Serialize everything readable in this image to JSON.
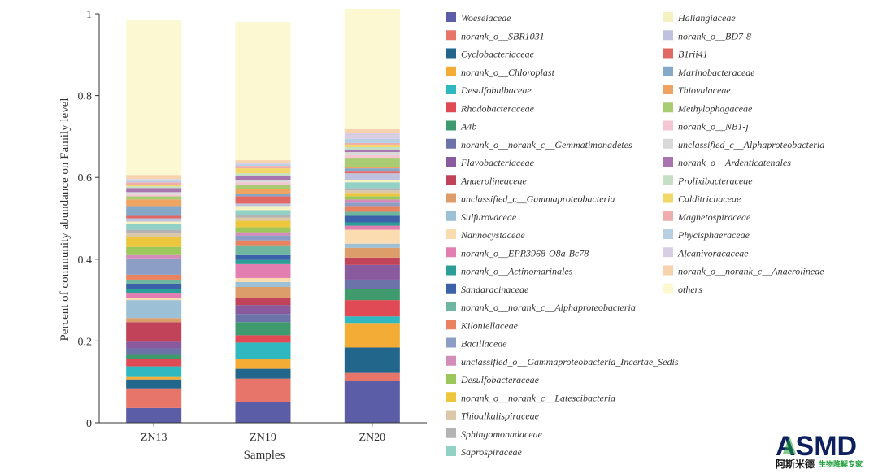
{
  "chart_data": {
    "type": "bar",
    "stacked": true,
    "categories": [
      "ZN13",
      "ZN19",
      "ZN20"
    ],
    "xlabel": "Samples",
    "ylabel": "Percent of community abundance on Family level",
    "ylim": [
      0,
      1
    ],
    "yticks": [
      "0",
      "0.2",
      "0.4",
      "0.6",
      "0.8",
      "1"
    ],
    "legend_position": "right",
    "series": [
      {
        "name": "Woeseiaceae",
        "color": "#5b5ea6",
        "values": [
          0.036,
          0.05,
          0.102
        ]
      },
      {
        "name": "norank_o__SBR1031",
        "color": "#e8756a",
        "values": [
          0.048,
          0.058,
          0.02
        ]
      },
      {
        "name": "Cyclobacteriaceae",
        "color": "#22668c",
        "values": [
          0.022,
          0.024,
          0.062
        ]
      },
      {
        "name": "norank_o__Chloroplast",
        "color": "#f3ad37",
        "values": [
          0.006,
          0.024,
          0.06
        ]
      },
      {
        "name": "Desulfobulbaceae",
        "color": "#2fb8bf",
        "values": [
          0.026,
          0.04,
          0.016
        ]
      },
      {
        "name": "Rhodobacteraceae",
        "color": "#e04a55",
        "values": [
          0.018,
          0.018,
          0.04
        ]
      },
      {
        "name": "A4b",
        "color": "#3f9a6e",
        "values": [
          0.01,
          0.032,
          0.028
        ]
      },
      {
        "name": "norank_o__norank_c__Gemmatimonadetes",
        "color": "#6c73a8",
        "values": [
          0.016,
          0.02,
          0.022
        ]
      },
      {
        "name": "Flavobacteriaceae",
        "color": "#8a5a9e",
        "values": [
          0.016,
          0.022,
          0.036
        ]
      },
      {
        "name": "Anaerolineaceae",
        "color": "#c0435a",
        "values": [
          0.048,
          0.018,
          0.018
        ]
      },
      {
        "name": "unclassified_c__Gammaproteobacteria",
        "color": "#dd9d6a",
        "values": [
          0.01,
          0.026,
          0.024
        ]
      },
      {
        "name": "Sulfurovaceae",
        "color": "#9cc0d6",
        "values": [
          0.044,
          0.012,
          0.01
        ]
      },
      {
        "name": "Nannocystaceae",
        "color": "#fbdcb1",
        "values": [
          0.006,
          0.01,
          0.034
        ]
      },
      {
        "name": "norank_o__EPR3968-O8a-Bc78",
        "color": "#e27fb0",
        "values": [
          0.012,
          0.034,
          0.01
        ]
      },
      {
        "name": "norank_o__Actinomarinales",
        "color": "#2a9e97",
        "values": [
          0.008,
          0.01,
          0.008
        ]
      },
      {
        "name": "Sandaracinaceae",
        "color": "#3b62a8",
        "values": [
          0.014,
          0.012,
          0.016
        ]
      },
      {
        "name": "norank_o__norank_c__Alphaproteobacteria",
        "color": "#6fb6a0",
        "values": [
          0.01,
          0.024,
          0.01
        ]
      },
      {
        "name": "Kiloniellaceae",
        "color": "#e8825f",
        "values": [
          0.012,
          0.012,
          0.014
        ]
      },
      {
        "name": "Bacillaceae",
        "color": "#8d9ec6",
        "values": [
          0.04,
          0.012,
          0.008
        ]
      },
      {
        "name": "unclassified_o__Gammaproteobacteria_Incertae_Sedis",
        "color": "#d48cb8",
        "values": [
          0.008,
          0.008,
          0.008
        ]
      },
      {
        "name": "Desulfobacteraceae",
        "color": "#9cc75a",
        "values": [
          0.02,
          0.012,
          0.008
        ]
      },
      {
        "name": "norank_o__norank_c__Latescibacteria",
        "color": "#ecc63c",
        "values": [
          0.024,
          0.016,
          0.008
        ]
      },
      {
        "name": "Thioalkalispiraceae",
        "color": "#dcc7a8",
        "values": [
          0.01,
          0.008,
          0.006
        ]
      },
      {
        "name": "Sphingomonadaceae",
        "color": "#b3b3b3",
        "values": [
          0.008,
          0.006,
          0.006
        ]
      },
      {
        "name": "Saprospiraceae",
        "color": "#92d2c6",
        "values": [
          0.014,
          0.012,
          0.014
        ]
      },
      {
        "name": "Haliangiaceae",
        "color": "#f6f1c0",
        "values": [
          0.006,
          0.01,
          0.006
        ]
      },
      {
        "name": "norank_o__BD7-8",
        "color": "#bfc2de",
        "values": [
          0.008,
          0.006,
          0.016
        ]
      },
      {
        "name": "B1rii41",
        "color": "#e26863",
        "values": [
          0.006,
          0.018,
          0.006
        ]
      },
      {
        "name": "Marinobacteraceae",
        "color": "#85a7c8",
        "values": [
          0.024,
          0.006,
          0.006
        ]
      },
      {
        "name": "Thiovulaceae",
        "color": "#f0a462",
        "values": [
          0.016,
          0.012,
          0.004
        ]
      },
      {
        "name": "Methylophagaceae",
        "color": "#a9cb72",
        "values": [
          0.008,
          0.01,
          0.022
        ]
      },
      {
        "name": "norank_o__NB1-j",
        "color": "#f6c5d4",
        "values": [
          0.004,
          0.006,
          0.006
        ]
      },
      {
        "name": "unclassified_c__Alphaproteobacteria",
        "color": "#d9d9d9",
        "values": [
          0.006,
          0.006,
          0.008
        ]
      },
      {
        "name": "norank_o__Ardenticatenales",
        "color": "#a975ae",
        "values": [
          0.01,
          0.01,
          0.006
        ]
      },
      {
        "name": "Prolixibacteraceae",
        "color": "#c5dfc4",
        "values": [
          0.004,
          0.006,
          0.006
        ]
      },
      {
        "name": "Calditrichaceae",
        "color": "#f2d769",
        "values": [
          0.004,
          0.012,
          0.006
        ]
      },
      {
        "name": "Magnetospiraceae",
        "color": "#efadab",
        "values": [
          0.006,
          0.006,
          0.004
        ]
      },
      {
        "name": "Phycisphaeraceae",
        "color": "#b7cfe3",
        "values": [
          0.004,
          0.004,
          0.01
        ]
      },
      {
        "name": "Alcanivoracaceae",
        "color": "#d9cde4",
        "values": [
          0.004,
          0.004,
          0.014
        ]
      },
      {
        "name": "norank_o__norank_c__Anaerolineae",
        "color": "#f6d2ad",
        "values": [
          0.01,
          0.006,
          0.01
        ]
      },
      {
        "name": "others",
        "color": "#fcf8d2",
        "values": [
          0.38,
          0.338,
          0.294
        ]
      }
    ]
  },
  "logo": {
    "text": "ASMD",
    "subtitle_cn": "阿斯米德",
    "tagline_cn": "生物降解专家",
    "colors": {
      "primary": "#0d1f5c",
      "accent": "#1fa03a"
    }
  }
}
